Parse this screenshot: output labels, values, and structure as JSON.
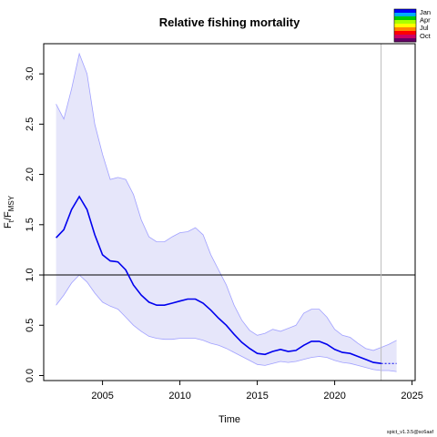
{
  "chart_data": {
    "type": "line",
    "title": "Relative fishing mortality",
    "xlabel": "Time",
    "ylabel_main": "F",
    "ylabel_sub1": "t",
    "ylabel_slash": "/F",
    "ylabel_sub2": "MSY",
    "footer": "spict_v1.3.5@sc6aaf",
    "xlim": [
      2001.2,
      2025.2
    ],
    "ylim": [
      -0.05,
      3.3
    ],
    "x_ticks": [
      2005,
      2010,
      2015,
      2020,
      2025
    ],
    "x_tick_labels": [
      "2005",
      "2010",
      "2015",
      "2020",
      "2025"
    ],
    "y_ticks": [
      0.0,
      0.5,
      1.0,
      1.5,
      2.0,
      2.5,
      3.0
    ],
    "y_tick_labels": [
      "0.0",
      "0.5",
      "1.0",
      "1.5",
      "2.0",
      "2.5",
      "3.0"
    ],
    "reference_line_y": 1.0,
    "vertical_line_x": 2023.0,
    "legend": {
      "placement": "top-right",
      "labels": [
        "Jan",
        "Apr",
        "Jul",
        "Oct"
      ],
      "colors": [
        "#0000ff",
        "#00aaff",
        "#00cc00",
        "#aaff00",
        "#ffff00",
        "#ff8800",
        "#ff0000",
        "#cc0066",
        "#660066"
      ]
    },
    "colors": {
      "estimate": "#0000ee",
      "ci_fill": "#e6e6fa",
      "ci_line": "#a0a0ff",
      "axis": "#000000",
      "vline": "#bbbbbb"
    },
    "series": [
      {
        "role": "estimate",
        "x": [
          2002.0,
          2002.5,
          2003.0,
          2003.5,
          2004.0,
          2004.5,
          2005.0,
          2005.5,
          2006.0,
          2006.5,
          2007.0,
          2007.5,
          2008.0,
          2008.5,
          2009.0,
          2009.5,
          2010.0,
          2010.5,
          2011.0,
          2011.5,
          2012.0,
          2012.5,
          2013.0,
          2013.5,
          2014.0,
          2014.5,
          2015.0,
          2015.5,
          2016.0,
          2016.5,
          2017.0,
          2017.5,
          2018.0,
          2018.5,
          2019.0,
          2019.5,
          2020.0,
          2020.5,
          2021.0,
          2021.5,
          2022.0,
          2022.5,
          2023.0
        ],
        "y": [
          1.37,
          1.45,
          1.65,
          1.78,
          1.65,
          1.4,
          1.2,
          1.14,
          1.13,
          1.05,
          0.9,
          0.8,
          0.73,
          0.7,
          0.7,
          0.72,
          0.74,
          0.76,
          0.76,
          0.72,
          0.65,
          0.57,
          0.5,
          0.41,
          0.33,
          0.27,
          0.22,
          0.21,
          0.24,
          0.26,
          0.24,
          0.25,
          0.3,
          0.34,
          0.34,
          0.31,
          0.26,
          0.23,
          0.22,
          0.19,
          0.16,
          0.13,
          0.12
        ]
      },
      {
        "role": "forecast",
        "x": [
          2023.0,
          2023.5,
          2024.0
        ],
        "y": [
          0.12,
          0.12,
          0.12
        ]
      },
      {
        "role": "ci_upper",
        "x": [
          2002.0,
          2002.5,
          2003.0,
          2003.5,
          2004.0,
          2004.5,
          2005.0,
          2005.5,
          2006.0,
          2006.5,
          2007.0,
          2007.5,
          2008.0,
          2008.5,
          2009.0,
          2009.5,
          2010.0,
          2010.5,
          2011.0,
          2011.5,
          2012.0,
          2012.5,
          2013.0,
          2013.5,
          2014.0,
          2014.5,
          2015.0,
          2015.5,
          2016.0,
          2016.5,
          2017.0,
          2017.5,
          2018.0,
          2018.5,
          2019.0,
          2019.5,
          2020.0,
          2020.5,
          2021.0,
          2021.5,
          2022.0,
          2022.5,
          2023.0,
          2023.5,
          2024.0
        ],
        "y": [
          2.7,
          2.55,
          2.85,
          3.2,
          3.0,
          2.5,
          2.2,
          1.95,
          1.97,
          1.95,
          1.8,
          1.55,
          1.38,
          1.33,
          1.33,
          1.38,
          1.42,
          1.43,
          1.47,
          1.4,
          1.2,
          1.05,
          0.9,
          0.7,
          0.55,
          0.45,
          0.4,
          0.42,
          0.46,
          0.44,
          0.47,
          0.5,
          0.62,
          0.66,
          0.66,
          0.58,
          0.46,
          0.4,
          0.38,
          0.32,
          0.27,
          0.25,
          0.28,
          0.31,
          0.35
        ]
      },
      {
        "role": "ci_lower",
        "x": [
          2002.0,
          2002.5,
          2003.0,
          2003.5,
          2004.0,
          2004.5,
          2005.0,
          2005.5,
          2006.0,
          2006.5,
          2007.0,
          2007.5,
          2008.0,
          2008.5,
          2009.0,
          2009.5,
          2010.0,
          2010.5,
          2011.0,
          2011.5,
          2012.0,
          2012.5,
          2013.0,
          2013.5,
          2014.0,
          2014.5,
          2015.0,
          2015.5,
          2016.0,
          2016.5,
          2017.0,
          2017.5,
          2018.0,
          2018.5,
          2019.0,
          2019.5,
          2020.0,
          2020.5,
          2021.0,
          2021.5,
          2022.0,
          2022.5,
          2023.0,
          2023.5,
          2024.0
        ],
        "y": [
          0.7,
          0.8,
          0.92,
          1.0,
          0.93,
          0.82,
          0.73,
          0.69,
          0.66,
          0.58,
          0.5,
          0.44,
          0.39,
          0.37,
          0.36,
          0.36,
          0.37,
          0.37,
          0.37,
          0.35,
          0.32,
          0.3,
          0.27,
          0.23,
          0.19,
          0.15,
          0.11,
          0.1,
          0.12,
          0.14,
          0.13,
          0.14,
          0.16,
          0.18,
          0.19,
          0.18,
          0.15,
          0.13,
          0.12,
          0.1,
          0.08,
          0.06,
          0.05,
          0.05,
          0.04
        ]
      }
    ]
  }
}
